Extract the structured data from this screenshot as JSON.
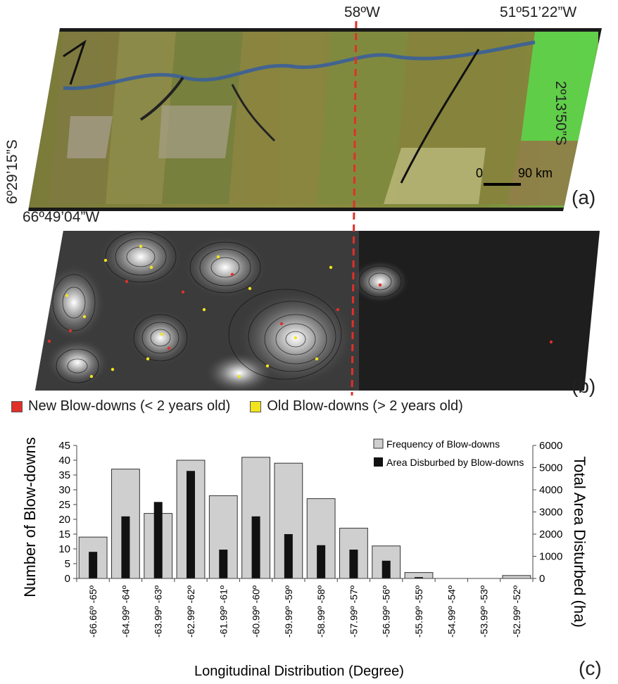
{
  "panel_a": {
    "label": "(a)",
    "coord_top_meridian": "58ºW",
    "coord_top_right": "51º51’22”W",
    "coord_right": "2º13’50”S",
    "coord_left": "6º29’15”S",
    "coord_bottom_left": "66º49’04”W",
    "scale_zero": "0",
    "scale_dist": "90 km"
  },
  "panel_b": {
    "label": "(b)",
    "legend_new": "New Blow-downs (< 2 years old)",
    "legend_old": "Old Blow-downs (> 2 years old)",
    "color_new": "#e0302a",
    "color_old": "#f2e41c"
  },
  "panel_c": {
    "label": "(c)"
  },
  "chart_data": {
    "type": "bar",
    "xlabel": "Longitudinal Distribution (Degree)",
    "ylabel": "Number of Blow-downs",
    "y2label": "Total Area Disturbed (ha)",
    "ylim": [
      0,
      45
    ],
    "y2lim": [
      0,
      6000
    ],
    "yticks": [
      "0",
      "5",
      "10",
      "15",
      "20",
      "25",
      "30",
      "35",
      "40",
      "45"
    ],
    "y2ticks": [
      "0",
      "1000",
      "2000",
      "3000",
      "4000",
      "5000",
      "6000"
    ],
    "legend_position": "top-right",
    "categories": [
      "-66.66º -65º",
      "-64.99º -64º",
      "-63.99º -63º",
      "-62.99º -62º",
      "-61.99º -61º",
      "-60.99º -60º",
      "-59.99º -59º",
      "-58.99º -58º",
      "-57.99º -57º",
      "-56.99º -56º",
      "-55.99º -55º",
      "-54.99º -54º",
      "-53.99º -53º",
      "-52.99º -52º"
    ],
    "series": [
      {
        "name": "Frequency of Blow-downs",
        "axis": "left",
        "color": "#cfcfcf",
        "values": [
          14,
          37,
          22,
          40,
          28,
          41,
          39,
          27,
          17,
          11,
          2,
          0,
          0,
          1
        ]
      },
      {
        "name": "Area Disburbed by Blow-downs",
        "axis": "right",
        "color": "#111111",
        "values": [
          1200,
          2800,
          3450,
          4850,
          1300,
          2800,
          2000,
          1500,
          1300,
          800,
          60,
          0,
          0,
          0
        ]
      }
    ]
  }
}
